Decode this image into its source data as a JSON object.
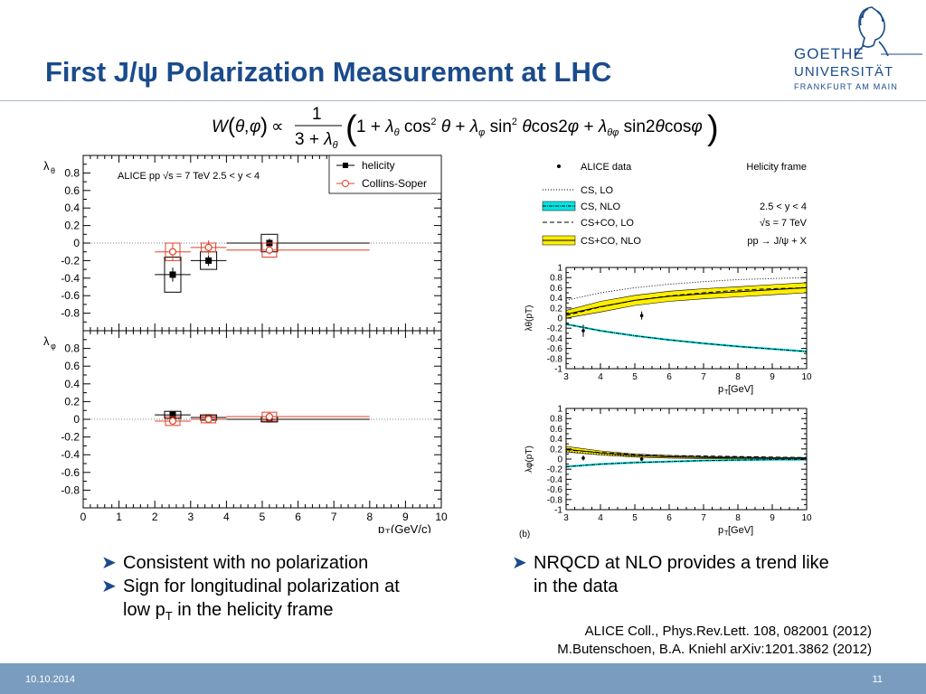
{
  "slide": {
    "title": "First J/ψ Polarization Measurement at LHC",
    "logo": {
      "line1": "GOETHE",
      "line2": "UNIVERSITÄT",
      "line3": "FRANKFURT AM MAIN"
    },
    "bullets_left": [
      "Consistent with no polarization",
      "Sign for longitudinal polarization at",
      "low p",
      "T",
      " in the helicity frame"
    ],
    "bullets_right": [
      "NRQCD at NLO provides a trend like",
      "in the data"
    ],
    "references": [
      "ALICE Coll., Phys.Rev.Lett. 108, 082001 (2012)",
      "M.Butenschoen, B.A. Kniehl arXiv:1201.3862 (2012)"
    ],
    "footer": {
      "date": "10.10.2014",
      "page": "11"
    },
    "colors": {
      "title": "#1a4b8c",
      "footer": "#7a9dbf",
      "helicity": "#000000",
      "collins_soper": "#e0402a",
      "nlo_band": "#ffee00",
      "cs_band": "#00e5e5"
    }
  },
  "chart_data": [
    {
      "type": "scatter",
      "panels": [
        {
          "ylabel": "λθ",
          "ylim": [
            -1,
            1
          ],
          "yticks": [
            "0.8",
            "0.6",
            "0.4",
            "0.2",
            "0",
            "-0.2",
            "-0.4",
            "-0.6",
            "-0.8"
          ],
          "series": [
            {
              "name": "helicity",
              "points": [
                {
                  "x": 2.5,
                  "xerr": [
                    2,
                    3
                  ],
                  "y": -0.36,
                  "yerr": 0.08,
                  "syst": 0.2
                },
                {
                  "x": 3.5,
                  "xerr": [
                    3,
                    4
                  ],
                  "y": -0.2,
                  "yerr": 0.06,
                  "syst": 0.1
                },
                {
                  "x": 5.2,
                  "xerr": [
                    4,
                    8
                  ],
                  "y": 0.0,
                  "yerr": 0.05,
                  "syst": 0.1
                }
              ]
            },
            {
              "name": "Collins-Soper",
              "points": [
                {
                  "x": 2.5,
                  "xerr": [
                    2,
                    3
                  ],
                  "y": -0.1,
                  "yerr": 0.1,
                  "syst": 0.1
                },
                {
                  "x": 3.5,
                  "xerr": [
                    3,
                    4
                  ],
                  "y": -0.05,
                  "yerr": 0.08,
                  "syst": 0.05
                },
                {
                  "x": 5.2,
                  "xerr": [
                    4,
                    8
                  ],
                  "y": -0.08,
                  "yerr": 0.05,
                  "syst": 0.08
                }
              ]
            }
          ]
        },
        {
          "ylabel": "λφ",
          "ylim": [
            -1,
            1
          ],
          "yticks": [
            "0.8",
            "0.6",
            "0.4",
            "0.2",
            "0",
            "-0.2",
            "-0.4",
            "-0.6",
            "-0.8"
          ],
          "series": [
            {
              "name": "helicity",
              "points": [
                {
                  "x": 2.5,
                  "xerr": [
                    2,
                    3
                  ],
                  "y": 0.05,
                  "yerr": 0.03,
                  "syst": 0.04
                },
                {
                  "x": 3.5,
                  "xerr": [
                    3,
                    4
                  ],
                  "y": 0.02,
                  "yerr": 0.03,
                  "syst": 0.03
                },
                {
                  "x": 5.2,
                  "xerr": [
                    4,
                    8
                  ],
                  "y": 0.0,
                  "yerr": 0.03,
                  "syst": 0.03
                }
              ]
            },
            {
              "name": "Collins-Soper",
              "points": [
                {
                  "x": 2.5,
                  "xerr": [
                    2,
                    3
                  ],
                  "y": -0.02,
                  "yerr": 0.04,
                  "syst": 0.05
                },
                {
                  "x": 3.5,
                  "xerr": [
                    3,
                    4
                  ],
                  "y": 0.0,
                  "yerr": 0.04,
                  "syst": 0.04
                },
                {
                  "x": 5.2,
                  "xerr": [
                    4,
                    8
                  ],
                  "y": 0.03,
                  "yerr": 0.05,
                  "syst": 0.05
                }
              ]
            }
          ]
        }
      ],
      "xlim": [
        0,
        10
      ],
      "xticks": [
        "0",
        "1",
        "2",
        "3",
        "4",
        "5",
        "6",
        "7",
        "8",
        "9",
        "10"
      ],
      "xlabel": "p",
      "xlabel_sub": "T",
      "xlabel_unit": " (GeV/c)",
      "annotation": "ALICE  pp  √s = 7 TeV    2.5 < y < 4",
      "legend": [
        "helicity",
        "Collins-Soper"
      ],
      "legend_position": "top-right"
    },
    {
      "type": "line",
      "legend": [
        {
          "label": "ALICE data",
          "style": "points"
        },
        {
          "label": "CS, LO",
          "style": "dotted"
        },
        {
          "label": "CS, NLO",
          "style": "band-cyan"
        },
        {
          "label": "CS+CO, LO",
          "style": "dashed"
        },
        {
          "label": "CS+CO, NLO",
          "style": "band-yellow"
        }
      ],
      "frame_label": "Helicity frame",
      "annotations": [
        "2.5 < y < 4",
        "√s = 7 TeV",
        "pp → J/ψ + X"
      ],
      "xlim": [
        3,
        10
      ],
      "xticks": [
        "3",
        "4",
        "5",
        "6",
        "7",
        "8",
        "9",
        "10"
      ],
      "xlabel": "p",
      "xlabel_sub": "T",
      "xlabel_unit": " [GeV]",
      "panel_tag": "(b)",
      "panels": [
        {
          "ylabel": "λθ(pT)",
          "ylim": [
            -1,
            1
          ],
          "yticks": [
            "1",
            "0.8",
            "0.6",
            "0.4",
            "0.2",
            "0",
            "-0.2",
            "-0.4",
            "-0.6",
            "-0.8",
            "-1"
          ],
          "data": [
            {
              "x": 3.5,
              "y": -0.25,
              "err": 0.12
            },
            {
              "x": 5.2,
              "y": 0.05,
              "err": 0.08
            }
          ],
          "curves": {
            "x": [
              3,
              4,
              5,
              6,
              7,
              8,
              9,
              10
            ],
            "cs_lo": [
              0.35,
              0.5,
              0.6,
              0.67,
              0.72,
              0.76,
              0.78,
              0.8
            ],
            "cs_nlo": [
              -0.12,
              -0.25,
              -0.35,
              -0.43,
              -0.5,
              -0.56,
              -0.61,
              -0.66
            ],
            "csco_lo": [
              0.05,
              0.22,
              0.35,
              0.44,
              0.5,
              0.55,
              0.58,
              0.6
            ],
            "csco_nlo_lo": [
              0.0,
              0.12,
              0.25,
              0.33,
              0.38,
              0.42,
              0.46,
              0.5
            ],
            "csco_nlo_hi": [
              0.15,
              0.33,
              0.45,
              0.53,
              0.58,
              0.62,
              0.66,
              0.7
            ]
          }
        },
        {
          "ylabel": "λφ(pT)",
          "ylim": [
            -1,
            1
          ],
          "yticks": [
            "1",
            "0.8",
            "0.6",
            "0.4",
            "0.2",
            "0",
            "-0.2",
            "-0.4",
            "-0.6",
            "-0.8",
            "-1"
          ],
          "data": [
            {
              "x": 3.5,
              "y": 0.02,
              "err": 0.05
            },
            {
              "x": 5.2,
              "y": 0.0,
              "err": 0.04
            }
          ],
          "curves": {
            "x": [
              3,
              4,
              5,
              6,
              7,
              8,
              9,
              10
            ],
            "cs_lo": [
              0.15,
              0.09,
              0.06,
              0.05,
              0.04,
              0.03,
              0.03,
              0.02
            ],
            "cs_nlo": [
              -0.15,
              -0.1,
              -0.07,
              -0.05,
              -0.03,
              -0.02,
              -0.01,
              -0.01
            ],
            "csco_lo": [
              0.18,
              0.13,
              0.09,
              0.07,
              0.06,
              0.05,
              0.04,
              0.03
            ],
            "csco_nlo_lo": [
              0.14,
              0.08,
              0.04,
              0.02,
              0.01,
              0.0,
              0.0,
              0.0
            ],
            "csco_nlo_hi": [
              0.25,
              0.16,
              0.1,
              0.07,
              0.05,
              0.04,
              0.03,
              0.03
            ]
          }
        }
      ]
    }
  ]
}
